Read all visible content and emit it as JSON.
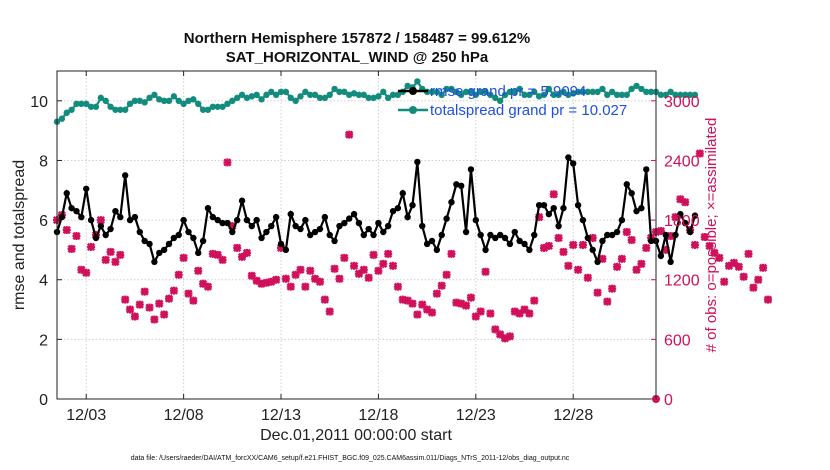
{
  "chart_data": {
    "type": "line",
    "title_line1": "Northern Hemisphere 157872 / 158487 = 99.612%",
    "title_line2": "SAT_HORIZONTAL_WIND @ 250 hPa",
    "ylabel_left": "rmse and totalspread",
    "ylabel_right": "# of obs: o=possible; ×=assimilated",
    "xlabel": "Dec.01,2011 00:00:00 start",
    "footer": "data file: /Users/raeder/DAI/ATM_forcXX/CAM6_setup/f.e21.FHIST_BGC.f09_025.CAM6assim.011/Diags_NTrS_2011-12/obs_diag_output.nc",
    "xlim": [
      1.5,
      32.25
    ],
    "ylim_left": [
      0,
      11
    ],
    "ylim_right": [
      0,
      3300
    ],
    "x_ticks": [
      3,
      8,
      13,
      18,
      23,
      28
    ],
    "x_tick_labels": [
      "12/03",
      "12/08",
      "12/13",
      "12/18",
      "12/23",
      "12/28"
    ],
    "y_left_ticks": [
      0,
      2,
      4,
      6,
      8,
      10
    ],
    "y_right_ticks": [
      0,
      600,
      1200,
      1800,
      2400,
      3000
    ],
    "colors": {
      "rmse": "#000000",
      "spread": "#138c7e",
      "obs": "#d0105a",
      "legend_text": "#1f4fe0"
    },
    "series": [
      {
        "name": "rmse",
        "legend": "rmse grand pr = 5.9094",
        "x_start": 1.5,
        "x_step": 0.25,
        "values": [
          5.6,
          6.1,
          6.9,
          6.4,
          6.3,
          6.1,
          7.05,
          6.0,
          5.4,
          5.8,
          5.5,
          5.7,
          6.3,
          6.1,
          7.5,
          6.0,
          6.1,
          5.6,
          5.3,
          5.2,
          4.6,
          4.9,
          5.0,
          5.2,
          5.4,
          5.5,
          6.0,
          5.6,
          5.4,
          4.9,
          5.3,
          6.4,
          6.1,
          6.0,
          5.9,
          5.9,
          5.6,
          6.0,
          6.65,
          6.0,
          5.8,
          6.0,
          5.4,
          5.6,
          5.8,
          6.1,
          5.2,
          5.0,
          6.2,
          5.8,
          5.7,
          6.0,
          5.5,
          5.6,
          5.7,
          6.1,
          5.5,
          5.3,
          5.8,
          5.9,
          6.05,
          6.2,
          5.9,
          5.5,
          5.7,
          5.5,
          5.9,
          5.6,
          5.8,
          6.3,
          6.4,
          6.9,
          6.1,
          6.5,
          7.95,
          5.8,
          5.2,
          5.3,
          5.0,
          5.5,
          6.05,
          6.6,
          7.2,
          7.15,
          5.6,
          7.7,
          6.0,
          5.5,
          5.0,
          5.5,
          5.4,
          5.5,
          5.4,
          5.2,
          5.6,
          5.3,
          5.2,
          5.0,
          5.5,
          6.5,
          6.5,
          6.2,
          6.4,
          5.8,
          6.4,
          8.1,
          7.9,
          6.5,
          6.0,
          5.4,
          5.0,
          4.6,
          5.3,
          5.5,
          5.5,
          5.6,
          6.0,
          7.2,
          6.9,
          6.3,
          6.4,
          7.7,
          5.3,
          5.3,
          4.8,
          5.5,
          4.6,
          5.5,
          6.2,
          5.9,
          5.6,
          6.15
        ]
      },
      {
        "name": "totalspread",
        "legend": "totalspread grand pr = 10.027",
        "x_start": 1.5,
        "x_step": 0.25,
        "values": [
          9.3,
          9.4,
          9.6,
          9.7,
          9.9,
          9.9,
          9.9,
          9.8,
          9.8,
          10.1,
          10.0,
          9.8,
          9.7,
          9.7,
          9.7,
          9.9,
          10.0,
          10.0,
          9.95,
          10.1,
          10.2,
          10.05,
          10.0,
          10.0,
          10.15,
          10.0,
          9.9,
          10.0,
          10.05,
          9.9,
          9.7,
          9.7,
          9.8,
          9.8,
          9.8,
          9.9,
          10.0,
          10.1,
          10.2,
          10.1,
          10.15,
          10.2,
          10.05,
          10.2,
          10.3,
          10.2,
          10.3,
          10.3,
          10.1,
          10.0,
          10.15,
          10.3,
          10.2,
          10.2,
          10.1,
          10.1,
          10.2,
          10.4,
          10.3,
          10.3,
          10.2,
          10.25,
          10.2,
          10.2,
          10.1,
          10.1,
          10.15,
          10.3,
          10.1,
          10.2,
          10.2,
          10.3,
          10.5,
          10.45,
          10.65,
          10.4,
          10.3,
          10.3,
          10.3,
          10.2,
          10.4,
          10.4,
          10.3,
          10.2,
          10.3,
          10.3,
          10.2,
          10.3,
          10.3,
          10.2,
          10.1,
          10.0,
          10.2,
          10.3,
          10.3,
          10.4,
          10.2,
          10.2,
          10.3,
          10.15,
          10.2,
          10.4,
          10.2,
          10.2,
          10.3,
          10.2,
          10.25,
          10.3,
          10.3,
          10.3,
          10.3,
          10.3,
          10.4,
          10.2,
          10.3,
          10.2,
          10.2,
          10.2,
          10.4,
          10.5,
          10.4,
          10.3,
          10.3,
          10.3,
          10.2,
          10.2,
          10.3,
          10.2,
          10.2,
          10.2,
          10.2,
          10.2
        ]
      },
      {
        "name": "obs_assimilated",
        "legend": "",
        "x_start": 1.5,
        "x_step": 0.25,
        "values": [
          1800,
          1850,
          1700,
          1510,
          1640,
          1300,
          1270,
          1530,
          1650,
          1800,
          1400,
          1480,
          1380,
          1450,
          1000,
          900,
          830,
          950,
          1080,
          920,
          800,
          960,
          850,
          1010,
          1090,
          1250,
          1420,
          1060,
          990,
          1290,
          1160,
          1130,
          1460,
          1450,
          1400,
          2380,
          1740,
          1520,
          1430,
          1470,
          1240,
          1190,
          1160,
          1170,
          1180,
          1200,
          1520,
          1210,
          1130,
          1250,
          1300,
          1130,
          1290,
          1210,
          1180,
          1000,
          880,
          1310,
          1210,
          1420,
          2660,
          1340,
          1260,
          1300,
          1220,
          1450,
          1290,
          1360,
          1460,
          1340,
          1130,
          1000,
          990,
          960,
          850,
          950,
          900,
          870,
          1060,
          1140,
          1250,
          1460,
          970,
          960,
          940,
          1020,
          830,
          880,
          1280,
          860,
          700,
          650,
          610,
          630,
          880,
          860,
          900,
          860,
          990,
          1830,
          1520,
          1540,
          2060,
          1620,
          1480,
          1340,
          1550,
          1300,
          1550,
          1220,
          1620,
          1070,
          1410,
          980,
          1110,
          1330,
          1410,
          1680,
          1600,
          1300,
          1360,
          1520,
          1620,
          1680,
          1690,
          1500,
          1640,
          1830,
          2010,
          1980,
          1700,
          1550,
          2470,
          1630,
          1540,
          1470,
          1420,
          1180,
          1340,
          1370,
          1330,
          1230,
          1460,
          1120,
          1200,
          1320,
          1000
        ]
      }
    ]
  }
}
